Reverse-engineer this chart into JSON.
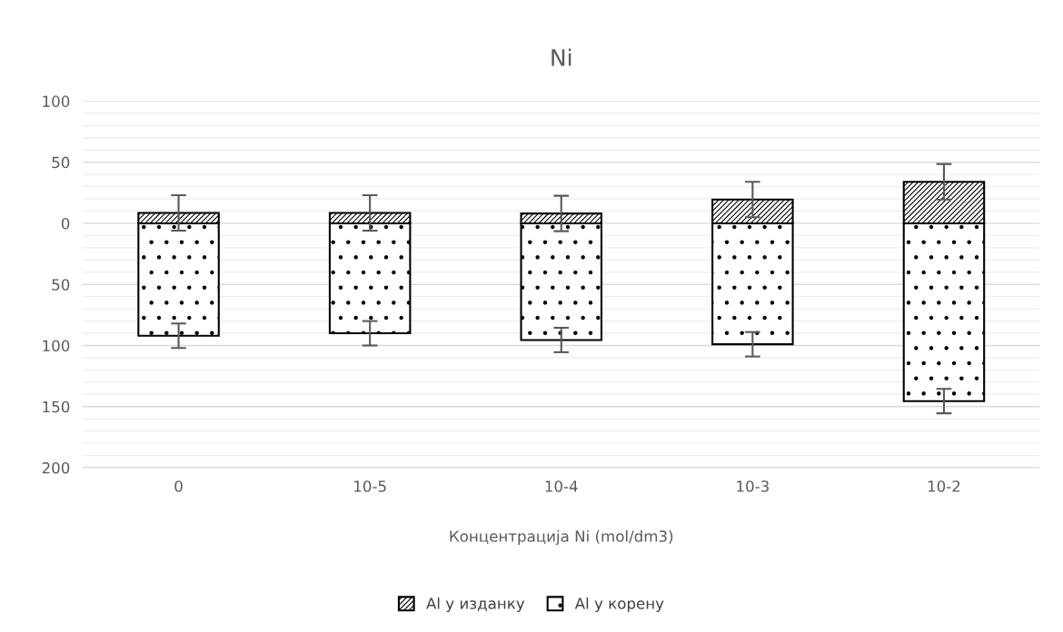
{
  "chart_data": {
    "type": "bar",
    "title": "Ni",
    "xlabel": "Концентрација Ni (mol/dm3)",
    "categories": [
      "0",
      "10-5",
      "10-4",
      "10-3",
      "10-2"
    ],
    "stacked": true,
    "series": [
      {
        "name": "Al у изданку",
        "color": "#000000",
        "values": [
          8.5,
          8.5,
          8,
          19.5,
          34
        ],
        "errors": [
          14.5,
          14.5,
          14.5,
          14.5,
          14.5
        ]
      },
      {
        "name": "Al у корену",
        "color": "#000000",
        "values": [
          -92,
          -90,
          -95.5,
          -99,
          -145.5
        ],
        "errors": [
          10,
          10,
          10,
          10,
          10
        ]
      }
    ],
    "ylim": [
      -200,
      100
    ],
    "yticks": [
      {
        "value": 100,
        "label": "100"
      },
      {
        "value": 90,
        "label": null
      },
      {
        "value": 80,
        "label": null
      },
      {
        "value": 70,
        "label": null
      },
      {
        "value": 60,
        "label": null
      },
      {
        "value": 50,
        "label": "50"
      },
      {
        "value": 40,
        "label": null
      },
      {
        "value": 30,
        "label": null
      },
      {
        "value": 20,
        "label": null
      },
      {
        "value": 10,
        "label": null
      },
      {
        "value": 0,
        "label": "0"
      },
      {
        "value": -10,
        "label": null
      },
      {
        "value": -20,
        "label": null
      },
      {
        "value": -30,
        "label": null
      },
      {
        "value": -40,
        "label": null
      },
      {
        "value": -50,
        "label": "50"
      },
      {
        "value": -60,
        "label": null
      },
      {
        "value": -70,
        "label": null
      },
      {
        "value": -80,
        "label": null
      },
      {
        "value": -90,
        "label": null
      },
      {
        "value": -100,
        "label": "100"
      },
      {
        "value": -110,
        "label": null
      },
      {
        "value": -120,
        "label": null
      },
      {
        "value": -130,
        "label": null
      },
      {
        "value": -140,
        "label": null
      },
      {
        "value": -150,
        "label": "150"
      },
      {
        "value": -160,
        "label": null
      },
      {
        "value": -170,
        "label": null
      },
      {
        "value": -180,
        "label": null
      },
      {
        "value": -190,
        "label": null
      },
      {
        "value": -200,
        "label": "200"
      }
    ],
    "grid": "y",
    "legend": "bottom"
  }
}
